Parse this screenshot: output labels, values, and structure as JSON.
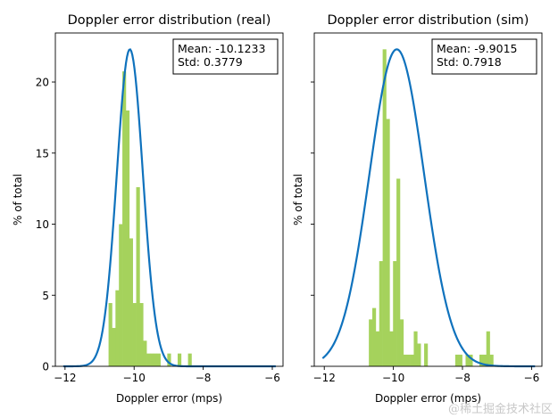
{
  "chart_data": [
    {
      "type": "bar",
      "title": "Doppler error distribution (real)",
      "xlabel": "Doppler error (mps)",
      "ylabel": "% of total",
      "xlim": [
        -12.28,
        -5.69
      ],
      "ylim": [
        0,
        23.45
      ],
      "xticks": [
        -12,
        -10,
        -8,
        -6
      ],
      "yticks": [
        0,
        5,
        10,
        15,
        20
      ],
      "show_ytick_labels": true,
      "bin_start": -10.74,
      "bin_width": 0.1,
      "values": [
        4.45,
        2.7,
        5.35,
        10,
        20.75,
        18,
        9,
        4.45,
        12.6,
        4.45,
        1.8,
        0.9,
        0.9,
        0.9,
        0.9,
        0,
        0,
        0.9,
        0,
        0,
        0.9,
        0,
        0,
        0.9
      ],
      "fit": {
        "mean": -10.1233,
        "std": 0.3779,
        "peak": 22.3,
        "range": [
          -12.05,
          -5.9
        ]
      },
      "annotation": [
        "Mean: -10.1233",
        "Std: 0.3779"
      ],
      "colors": {
        "bars": "#a5d25c",
        "curve": "#0f72bd"
      }
    },
    {
      "type": "bar",
      "title": "Doppler error distribution (sim)",
      "xlabel": "Doppler error (mps)",
      "ylabel": "% of total",
      "xlim": [
        -12.29,
        -5.7
      ],
      "ylim": [
        0,
        23.45
      ],
      "xticks": [
        -12,
        -10,
        -8,
        -6
      ],
      "yticks": [
        0,
        5,
        10,
        15,
        20
      ],
      "show_ytick_labels": false,
      "bin_start": -10.71,
      "bin_width": 0.1,
      "values": [
        3.3,
        4.1,
        2.46,
        7.4,
        22.3,
        17.4,
        2.46,
        7.4,
        13.2,
        3.3,
        0.82,
        0.82,
        0.82,
        2.46,
        1.6,
        0,
        1.6,
        0,
        0,
        0,
        0,
        0,
        0,
        0,
        0,
        0.82,
        0.82,
        0,
        0.82,
        0.82,
        0,
        0,
        0.82,
        0.82,
        2.46,
        0.82
      ],
      "fit": {
        "mean": -9.9015,
        "std": 0.7918,
        "peak": 22.3,
        "range": [
          -12.05,
          -5.9
        ]
      },
      "annotation": [
        "Mean: -9.9015",
        "Std: 0.7918"
      ],
      "colors": {
        "bars": "#a5d25c",
        "curve": "#0f72bd"
      }
    }
  ],
  "watermark": "@稀土掘金技术社区"
}
